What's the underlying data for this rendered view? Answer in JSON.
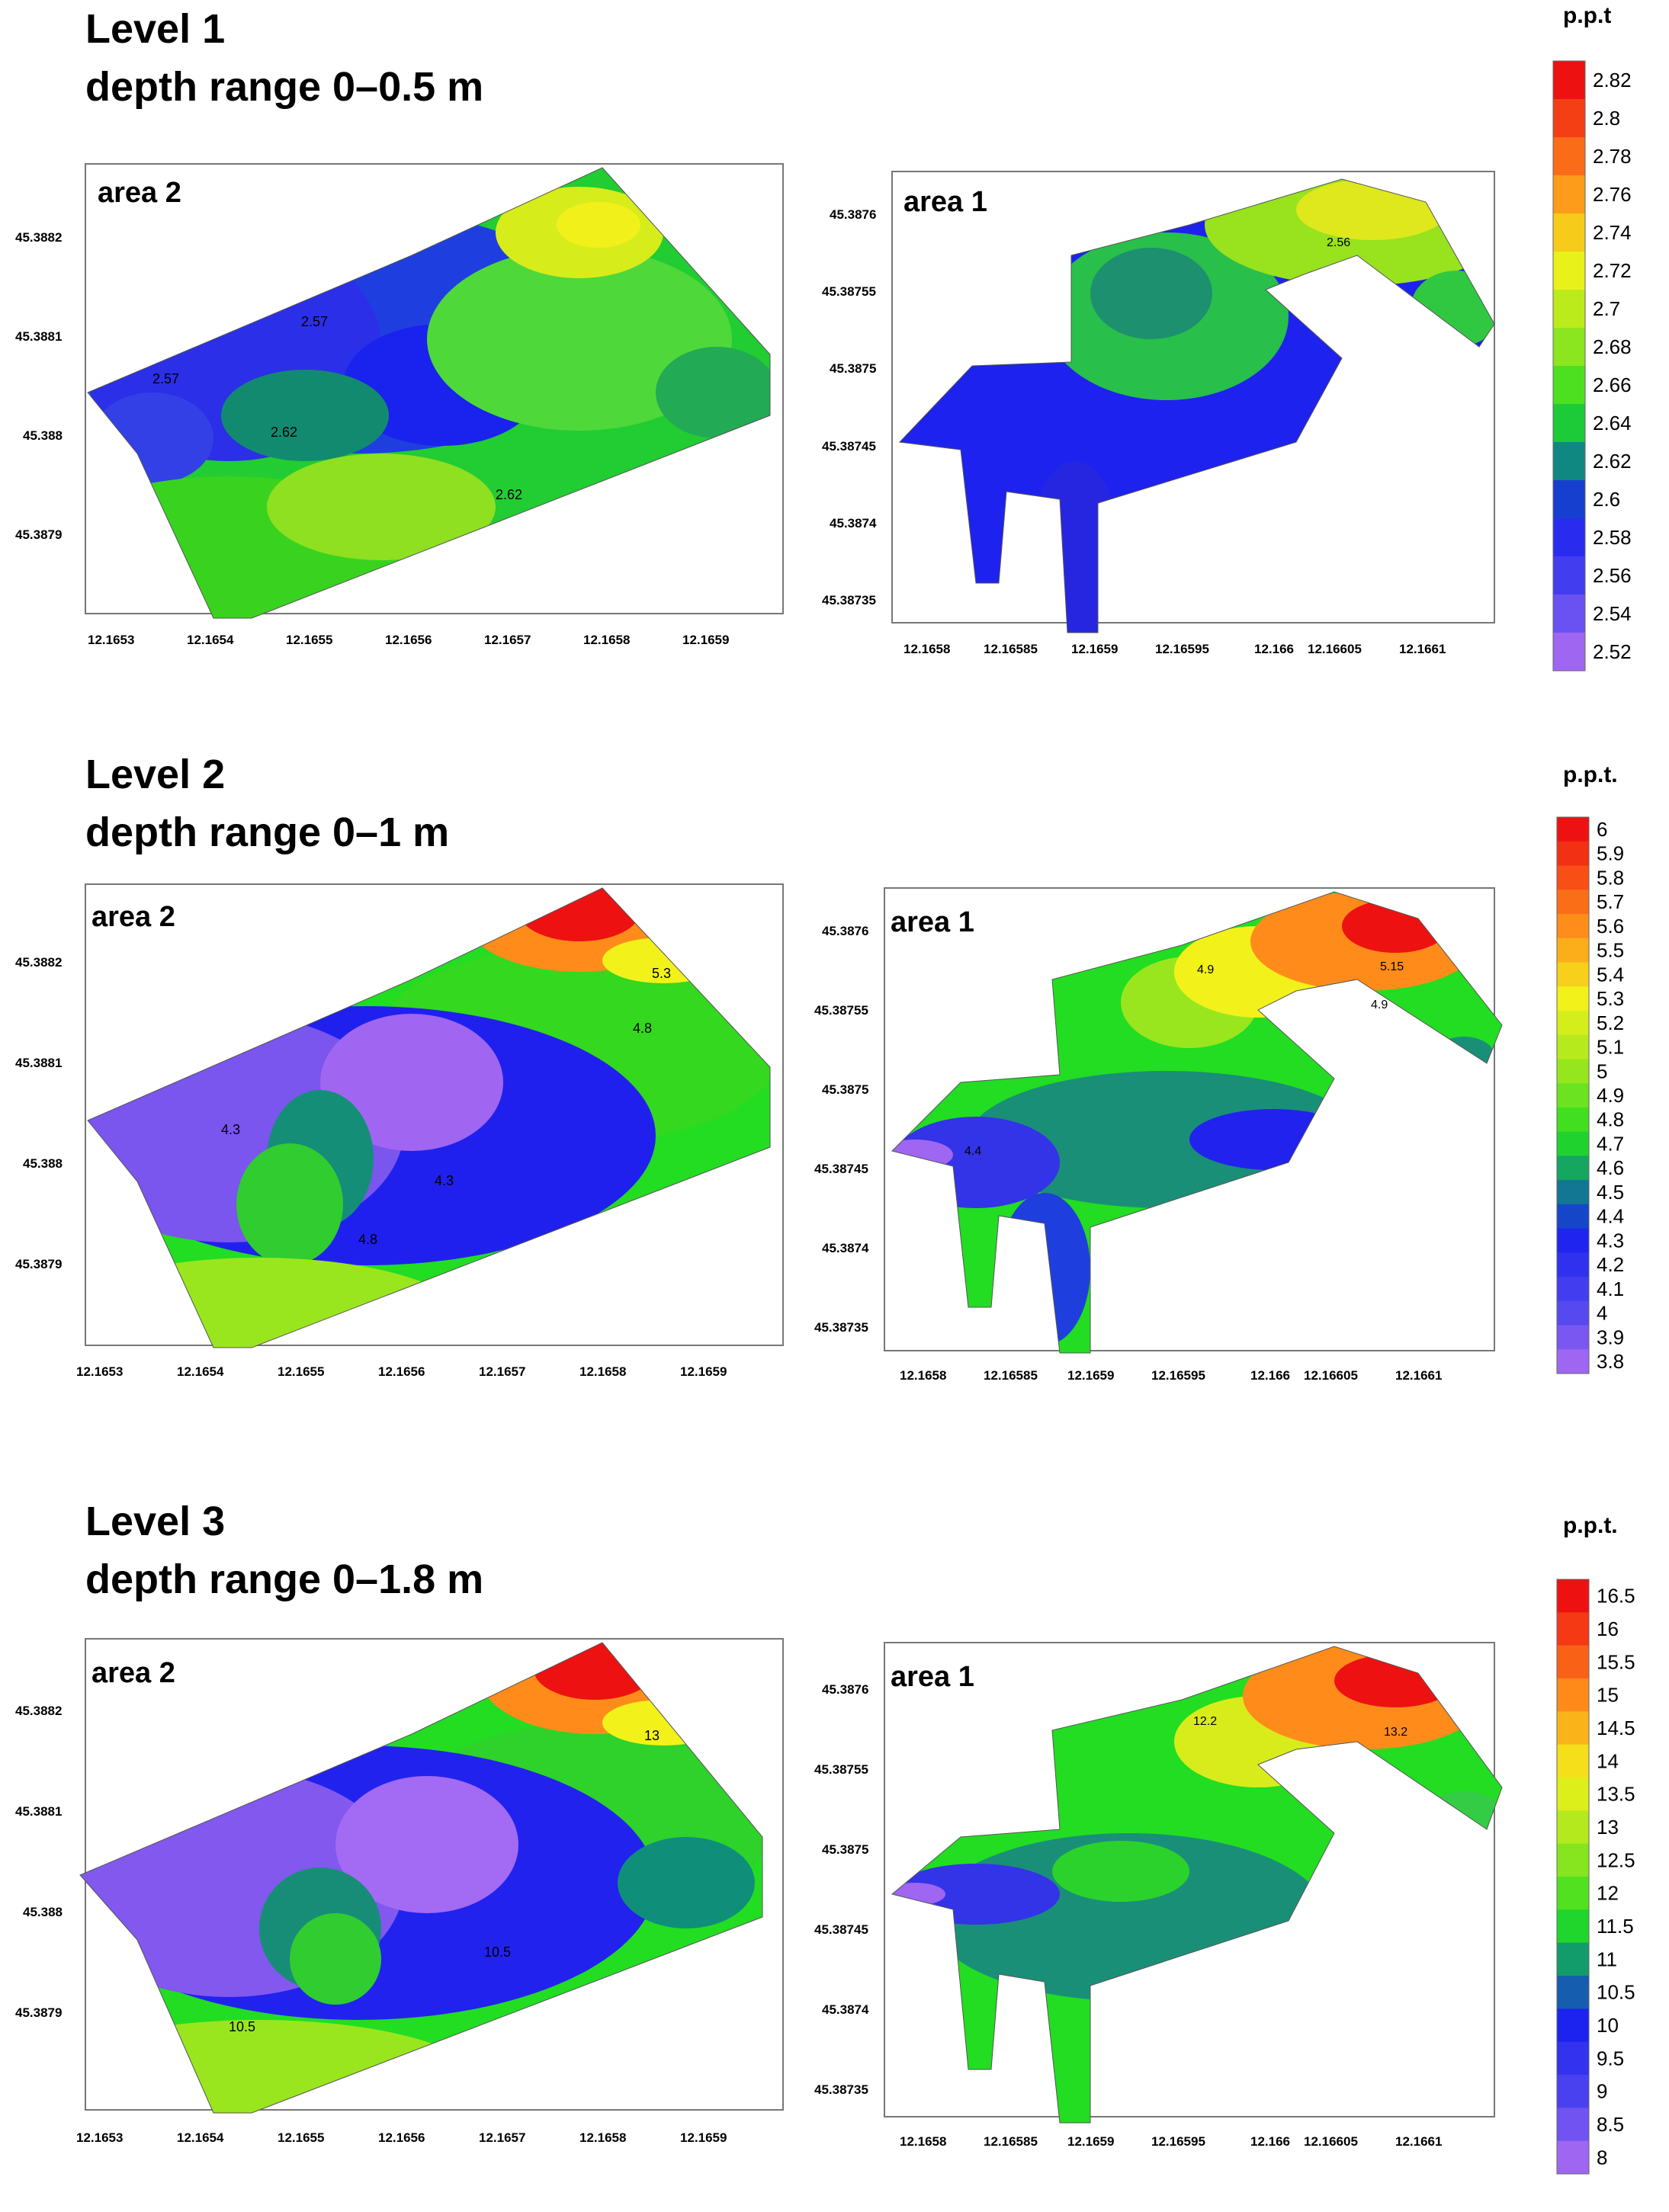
{
  "levels": [
    {
      "title": "Level 1",
      "subtitle": "depth range 0–0.5 m",
      "unit": "p.p.t",
      "legend": {
        "ticks": [
          "2.82",
          "2.8",
          "2.78",
          "2.76",
          "2.74",
          "2.72",
          "2.7",
          "2.68",
          "2.66",
          "2.64",
          "2.62",
          "2.6",
          "2.58",
          "2.56",
          "2.54",
          "2.52"
        ]
      },
      "area2": {
        "label": "area 2",
        "y_ticks": [
          "45.3882",
          "45.3881",
          "45.388",
          "45.3879"
        ],
        "x_ticks": [
          "12.1653",
          "12.1654",
          "12.1655",
          "12.1656",
          "12.1657",
          "12.1658",
          "12.1659"
        ],
        "contour_labels": [
          "2.57",
          "2.57",
          "2.62",
          "2.62"
        ]
      },
      "area1": {
        "label": "area 1",
        "y_ticks": [
          "45.3876",
          "45.38755",
          "45.3875",
          "45.38745",
          "45.3874",
          "45.38735"
        ],
        "x_ticks": [
          "12.1658",
          "12.16585",
          "12.1659",
          "12.16595",
          "12.166",
          "12.16605",
          "12.1661"
        ],
        "contour_labels": [
          "2.56"
        ]
      }
    },
    {
      "title": "Level 2",
      "subtitle": "depth range 0–1 m",
      "unit": "p.p.t.",
      "legend": {
        "ticks": [
          "6",
          "5.9",
          "5.8",
          "5.7",
          "5.6",
          "5.5",
          "5.4",
          "5.3",
          "5.2",
          "5.1",
          "5",
          "4.9",
          "4.8",
          "4.7",
          "4.6",
          "4.5",
          "4.4",
          "4.3",
          "4.2",
          "4.1",
          "4",
          "3.9",
          "3.8"
        ]
      },
      "area2": {
        "label": "area 2",
        "y_ticks": [
          "45.3882",
          "45.3881",
          "45.388",
          "45.3879"
        ],
        "x_ticks": [
          "12.1653",
          "12.1654",
          "12.1655",
          "12.1656",
          "12.1657",
          "12.1658",
          "12.1659"
        ],
        "contour_labels": [
          "5.3",
          "4.8",
          "4.3",
          "4.3",
          "4.8"
        ]
      },
      "area1": {
        "label": "area 1",
        "y_ticks": [
          "45.3876",
          "45.38755",
          "45.3875",
          "45.38745",
          "45.3874",
          "45.38735"
        ],
        "x_ticks": [
          "12.1658",
          "12.16585",
          "12.1659",
          "12.16595",
          "12.166",
          "12.16605",
          "12.1661"
        ],
        "contour_labels": [
          "4.9",
          "5.15",
          "4.9",
          "4.4"
        ]
      }
    },
    {
      "title": "Level 3",
      "subtitle": "depth range 0–1.8 m",
      "unit": "p.p.t.",
      "legend": {
        "ticks": [
          "16.5",
          "16",
          "15.5",
          "15",
          "14.5",
          "14",
          "13.5",
          "13",
          "12.5",
          "12",
          "11.5",
          "11",
          "10.5",
          "10",
          "9.5",
          "9",
          "8.5",
          "8"
        ]
      },
      "area2": {
        "label": "area 2",
        "y_ticks": [
          "45.3882",
          "45.3881",
          "45.388",
          "45.3879"
        ],
        "x_ticks": [
          "12.1653",
          "12.1654",
          "12.1655",
          "12.1656",
          "12.1657",
          "12.1658",
          "12.1659"
        ],
        "contour_labels": [
          "13",
          "10.5",
          "10.5"
        ]
      },
      "area1": {
        "label": "area 1",
        "y_ticks": [
          "45.3876",
          "45.38755",
          "45.3875",
          "45.38745",
          "45.3874",
          "45.38735"
        ],
        "x_ticks": [
          "12.1658",
          "12.16585",
          "12.1659",
          "12.16595",
          "12.166",
          "12.16605",
          "12.1661"
        ],
        "contour_labels": [
          "12.2",
          "13.2"
        ]
      }
    }
  ],
  "colors": {
    "violet": "#9f66f2",
    "blue": "#2222ee",
    "teal": "#0f8f7a",
    "green": "#22dd22",
    "lime": "#9ae61e",
    "yellow": "#f2f21a",
    "orange": "#ff8c1a",
    "red": "#ee1111"
  }
}
